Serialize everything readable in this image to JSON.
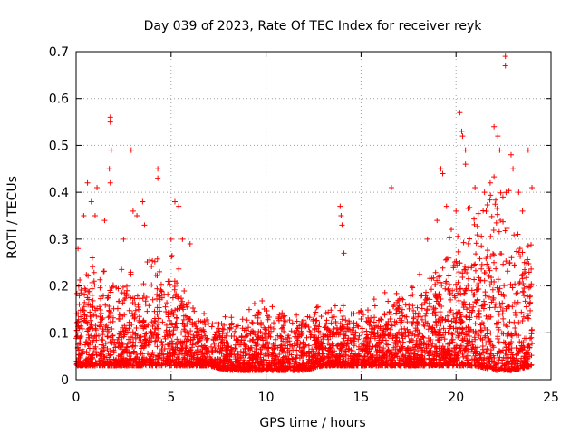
{
  "chart_data": {
    "type": "scatter",
    "title": "Day 039 of 2023, Rate Of TEC Index for receiver reyk",
    "xlabel": "GPS time / hours",
    "ylabel": "ROTI / TECUs",
    "xlim": [
      0,
      25
    ],
    "ylim": [
      0,
      0.7
    ],
    "xticks": [
      "0",
      "5",
      "10",
      "15",
      "20",
      "25"
    ],
    "yticks": [
      "0",
      "0.1",
      "0.2",
      "0.3",
      "0.4",
      "0.5",
      "0.6",
      "0.7"
    ],
    "grid": true,
    "marker": "plus",
    "color": "#ff0000",
    "envelope": {
      "hours": [
        0,
        1,
        2,
        3,
        4,
        5,
        6,
        7,
        8,
        9,
        10,
        11,
        12,
        13,
        14,
        15,
        16,
        17,
        18,
        19,
        20,
        21,
        22,
        23,
        24
      ],
      "floor": [
        0.03,
        0.03,
        0.03,
        0.03,
        0.03,
        0.03,
        0.03,
        0.03,
        0.02,
        0.02,
        0.02,
        0.02,
        0.02,
        0.03,
        0.03,
        0.03,
        0.03,
        0.03,
        0.03,
        0.03,
        0.03,
        0.03,
        0.02,
        0.02,
        0.03
      ],
      "typical_max": [
        0.22,
        0.22,
        0.2,
        0.2,
        0.24,
        0.22,
        0.16,
        0.11,
        0.12,
        0.13,
        0.14,
        0.13,
        0.13,
        0.14,
        0.14,
        0.14,
        0.15,
        0.17,
        0.18,
        0.22,
        0.28,
        0.32,
        0.35,
        0.33,
        0.3
      ]
    },
    "spikes": [
      {
        "x": 0.1,
        "y": 0.28
      },
      {
        "x": 0.4,
        "y": 0.35
      },
      {
        "x": 0.6,
        "y": 0.42
      },
      {
        "x": 0.8,
        "y": 0.38
      },
      {
        "x": 1.0,
        "y": 0.35
      },
      {
        "x": 1.1,
        "y": 0.41
      },
      {
        "x": 1.5,
        "y": 0.34
      },
      {
        "x": 1.75,
        "y": 0.45
      },
      {
        "x": 1.8,
        "y": 0.56
      },
      {
        "x": 1.8,
        "y": 0.55
      },
      {
        "x": 1.85,
        "y": 0.49
      },
      {
        "x": 1.8,
        "y": 0.42
      },
      {
        "x": 2.5,
        "y": 0.3
      },
      {
        "x": 2.9,
        "y": 0.49
      },
      {
        "x": 3.0,
        "y": 0.36
      },
      {
        "x": 3.2,
        "y": 0.35
      },
      {
        "x": 3.5,
        "y": 0.38
      },
      {
        "x": 3.6,
        "y": 0.33
      },
      {
        "x": 4.3,
        "y": 0.45
      },
      {
        "x": 4.3,
        "y": 0.43
      },
      {
        "x": 5.0,
        "y": 0.3
      },
      {
        "x": 5.2,
        "y": 0.38
      },
      {
        "x": 5.4,
        "y": 0.37
      },
      {
        "x": 5.6,
        "y": 0.3
      },
      {
        "x": 6.0,
        "y": 0.29
      },
      {
        "x": 13.9,
        "y": 0.37
      },
      {
        "x": 13.95,
        "y": 0.35
      },
      {
        "x": 14.0,
        "y": 0.33
      },
      {
        "x": 14.1,
        "y": 0.27
      },
      {
        "x": 16.6,
        "y": 0.41
      },
      {
        "x": 18.5,
        "y": 0.3
      },
      {
        "x": 19.0,
        "y": 0.34
      },
      {
        "x": 19.2,
        "y": 0.45
      },
      {
        "x": 19.3,
        "y": 0.44
      },
      {
        "x": 19.5,
        "y": 0.37
      },
      {
        "x": 20.0,
        "y": 0.36
      },
      {
        "x": 20.2,
        "y": 0.57
      },
      {
        "x": 20.3,
        "y": 0.53
      },
      {
        "x": 20.35,
        "y": 0.52
      },
      {
        "x": 20.5,
        "y": 0.49
      },
      {
        "x": 20.5,
        "y": 0.46
      },
      {
        "x": 21.0,
        "y": 0.41
      },
      {
        "x": 21.5,
        "y": 0.4
      },
      {
        "x": 21.8,
        "y": 0.42
      },
      {
        "x": 22.0,
        "y": 0.54
      },
      {
        "x": 22.2,
        "y": 0.52
      },
      {
        "x": 22.3,
        "y": 0.49
      },
      {
        "x": 22.6,
        "y": 0.69
      },
      {
        "x": 22.6,
        "y": 0.67
      },
      {
        "x": 22.9,
        "y": 0.48
      },
      {
        "x": 23.0,
        "y": 0.45
      },
      {
        "x": 23.3,
        "y": 0.4
      },
      {
        "x": 23.5,
        "y": 0.36
      },
      {
        "x": 23.8,
        "y": 0.49
      },
      {
        "x": 24.0,
        "y": 0.41
      }
    ],
    "point_count": 4000
  }
}
